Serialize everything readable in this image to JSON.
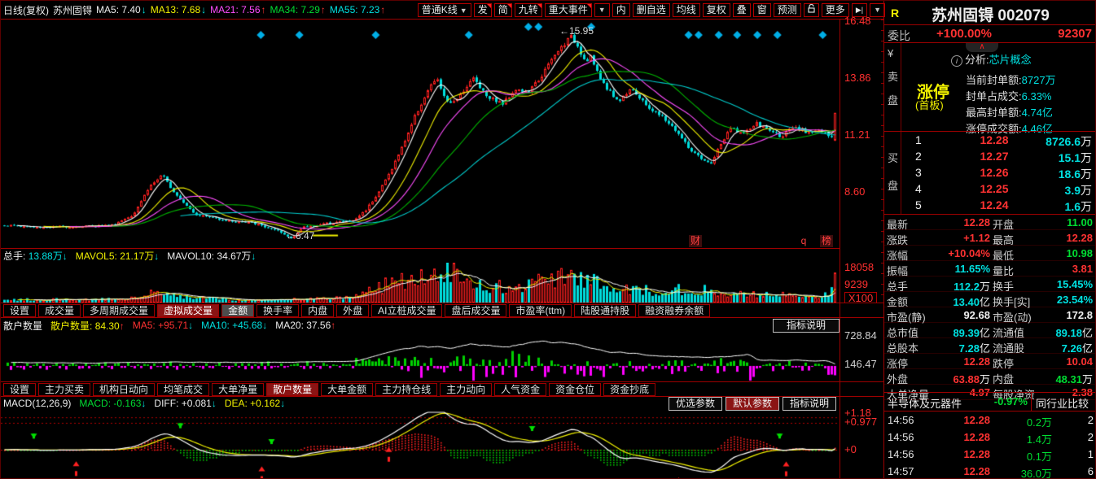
{
  "colors": {
    "red": "#ff3232",
    "green": "#00dc32",
    "cyan": "#00e0e0",
    "yellow": "#f0f000",
    "magenta": "#ff4dff",
    "white": "#eeeeee",
    "border": "#9e0000",
    "selected_tab_bg": "#8b1414",
    "down_candle": "#00dddd",
    "up_candle": "#ff2020"
  },
  "topbar": {
    "period": "日线(复权)",
    "stock": "苏州固锝",
    "ma": [
      {
        "label": "MA5:",
        "value": "7.40",
        "color": "white",
        "arrow": "↓",
        "ac": "cyan"
      },
      {
        "label": "MA13:",
        "value": "7.68",
        "color": "yellow",
        "arrow": "↓",
        "ac": "cyan"
      },
      {
        "label": "MA21:",
        "value": "7.56",
        "color": "magenta",
        "arrow": "↑",
        "ac": "red"
      },
      {
        "label": "MA34:",
        "value": "7.29",
        "color": "green",
        "arrow": "↑",
        "ac": "red"
      },
      {
        "label": "MA55:",
        "value": "7.23",
        "color": "cyan",
        "arrow": "↑",
        "ac": "red"
      }
    ],
    "buttons": [
      {
        "label": "普通K线",
        "caret": "▼"
      },
      {
        "label": "发"
      },
      {
        "label": "简"
      },
      {
        "label": "九转"
      },
      {
        "label": "重大事件"
      },
      {
        "label": "▼"
      },
      {
        "label": "内"
      },
      {
        "label": "删自选"
      },
      {
        "label": "均线"
      },
      {
        "label": "复权"
      },
      {
        "label": "叠"
      },
      {
        "label": "窗"
      },
      {
        "label": "预测"
      },
      {
        "label": "更多"
      },
      {
        "label": "▶|"
      },
      {
        "label": "▼"
      }
    ]
  },
  "main_chart": {
    "y_axis": [
      "16.48",
      "13.86",
      "11.21",
      "8.60"
    ],
    "high_annotation": "←15.95",
    "low_annotation": "←6.47",
    "watermarks": [
      "财",
      "q",
      "榜"
    ]
  },
  "vol_header": {
    "items": [
      {
        "label": "总手:",
        "value": "13.88万",
        "lc": "white",
        "vc": "cyan",
        "arrow": "↓",
        "ac": "cyan"
      },
      {
        "label": "MAVOL5:",
        "value": "21.17万",
        "lc": "yellow",
        "vc": "yellow",
        "arrow": "↓",
        "ac": "cyan"
      },
      {
        "label": "MAVOL10:",
        "value": "34.67万",
        "lc": "white",
        "vc": "white",
        "arrow": "↓",
        "ac": "cyan"
      }
    ],
    "y_axis": [
      "18058",
      "9239",
      "X100"
    ]
  },
  "tabs1": {
    "items": [
      {
        "label": "设置"
      },
      {
        "label": "成交量"
      },
      {
        "label": "多周期成交量"
      },
      {
        "label": "虚拟成交量"
      },
      {
        "label": "金额"
      },
      {
        "label": "换手率"
      },
      {
        "label": "内盘"
      },
      {
        "label": "外盘"
      },
      {
        "label": "AI立桩成交量"
      },
      {
        "label": "盘后成交量"
      },
      {
        "label": "市盈率(ttm)"
      },
      {
        "label": "陆股通持股"
      },
      {
        "label": "融资融券余额"
      }
    ]
  },
  "pane2_header": {
    "title": "散户数量",
    "items": [
      {
        "label": "散户数量:",
        "value": "84.30",
        "color": "yellow",
        "arrow": "↑",
        "ac": "red"
      },
      {
        "label": "MA5:",
        "value": "+95.71",
        "color": "red",
        "arrow": "↓",
        "ac": "cyan"
      },
      {
        "label": "MA10:",
        "value": "+45.68",
        "color": "cyan",
        "arrow": "↓",
        "ac": "cyan"
      },
      {
        "label": "MA20:",
        "value": "37.56",
        "color": "white",
        "arrow": "↑",
        "ac": "red"
      }
    ],
    "button": "指标说明",
    "y_axis": [
      "728.84",
      "146.47"
    ]
  },
  "tabs2": {
    "items": [
      {
        "label": "设置"
      },
      {
        "label": "主力买卖"
      },
      {
        "label": "机构日动向"
      },
      {
        "label": "均笔成交"
      },
      {
        "label": "大单净量"
      },
      {
        "label": "散户数量"
      },
      {
        "label": "大单金额"
      },
      {
        "label": "主力持仓线"
      },
      {
        "label": "主力动向"
      },
      {
        "label": "人气资金"
      },
      {
        "label": "资金仓位"
      },
      {
        "label": "资金抄底"
      }
    ]
  },
  "macd_header": {
    "title": "MACD(12,26,9)",
    "items": [
      {
        "label": "MACD:",
        "value": "-0.163",
        "color": "green",
        "arrow": "↓",
        "ac": "cyan"
      },
      {
        "label": "DIFF:",
        "value": "+0.081",
        "color": "white",
        "arrow": "↓",
        "ac": "cyan"
      },
      {
        "label": "DEA:",
        "value": "+0.162",
        "color": "yellow",
        "arrow": "↓",
        "ac": "cyan"
      }
    ],
    "buttons": [
      "优选参数",
      "默认参数",
      "指标说明"
    ],
    "y_axis": [
      "+1.18",
      "+0.977",
      "+0"
    ]
  },
  "right_panel": {
    "r_badge": "R",
    "title": "苏州固锝 002079",
    "weibi_label": "委比",
    "weibi_value": "+100.00%",
    "weicha_value": "92307",
    "sell_chars": [
      "¥",
      "卖",
      "盘"
    ],
    "buy_chars": [
      "买",
      "盘"
    ],
    "collapse_icon": "∧",
    "limit_up": "涨停",
    "limit_up_sub": "(首板)",
    "analysis": {
      "label": "分析:",
      "value": "芯片概念",
      "rows": [
        {
          "label": "当前封单额:",
          "value": "8727万"
        },
        {
          "label": "封单占成交:",
          "value": "6.33%"
        },
        {
          "label": "最高封单额:",
          "value": "4.74亿"
        },
        {
          "label": "涨停成交额:",
          "value": "4.46亿"
        }
      ]
    },
    "buy_rows": [
      {
        "level": "1",
        "price": "12.28",
        "vol": "8726.6",
        "unit": "万"
      },
      {
        "level": "2",
        "price": "12.27",
        "vol": "15.1",
        "unit": "万"
      },
      {
        "level": "3",
        "price": "12.26",
        "vol": "18.6",
        "unit": "万"
      },
      {
        "level": "4",
        "price": "12.25",
        "vol": "3.9",
        "unit": "万"
      },
      {
        "level": "5",
        "price": "12.24",
        "vol": "1.6",
        "unit": "万"
      }
    ],
    "stats": [
      {
        "l1": "最新",
        "v1": "12.28",
        "u1": "",
        "c1": "red",
        "l2": "开盘",
        "v2": "11.00",
        "u2": "",
        "c2": "green"
      },
      {
        "l1": "涨跌",
        "v1": "+1.12",
        "u1": "",
        "c1": "red",
        "l2": "最高",
        "v2": "12.28",
        "u2": "",
        "c2": "red"
      },
      {
        "l1": "涨幅",
        "v1": "+10.04%",
        "u1": "",
        "c1": "red",
        "l2": "最低",
        "v2": "10.98",
        "u2": "",
        "c2": "green"
      },
      {
        "l1": "振幅",
        "v1": "11.65%",
        "u1": "",
        "c1": "cyan",
        "l2": "量比",
        "v2": "3.81",
        "u2": "",
        "c2": "red"
      },
      {
        "l1": "总手",
        "v1": "112.2",
        "u1": "万",
        "c1": "cyan",
        "l2": "换手",
        "v2": "15.45%",
        "u2": "",
        "c2": "cyan"
      },
      {
        "l1": "金额",
        "v1": "13.40",
        "u1": "亿",
        "c1": "cyan",
        "l2": "换手[实]",
        "v2": "23.54%",
        "u2": "",
        "c2": "cyan"
      },
      {
        "l1": "市盈(静)",
        "v1": "92.68",
        "u1": "",
        "c1": "white",
        "l2": "市盈(动)",
        "v2": "172.8",
        "u2": "",
        "c2": "white"
      },
      {
        "l1": "总市值",
        "v1": "89.39",
        "u1": "亿",
        "c1": "cyan",
        "l2": "流通值",
        "v2": "89.18",
        "u2": "亿",
        "c2": "cyan"
      },
      {
        "l1": "总股本",
        "v1": "7.28",
        "u1": "亿",
        "c1": "cyan",
        "l2": "流通股",
        "v2": "7.26",
        "u2": "亿",
        "c2": "cyan"
      },
      {
        "l1": "涨停",
        "v1": "12.28",
        "u1": "",
        "c1": "red",
        "l2": "跌停",
        "v2": "10.04",
        "u2": "",
        "c2": "red"
      },
      {
        "l1": "外盘",
        "v1": "63.88",
        "u1": "万",
        "c1": "red",
        "l2": "内盘",
        "v2": "48.31",
        "u2": "万",
        "c2": "green"
      },
      {
        "l1": "大单净量",
        "v1": "4.97",
        "u1": "",
        "c1": "red",
        "l2": "每股净资",
        "v2": "2.38",
        "u2": "",
        "c2": "red"
      }
    ],
    "industry": {
      "name": "半导体及元器件",
      "change": "-0.97%",
      "compare": "同行业比较"
    },
    "ticks": [
      {
        "time": "14:56",
        "price": "12.28",
        "vol": "0.2万",
        "count": "2"
      },
      {
        "time": "14:56",
        "price": "12.28",
        "vol": "1.4万",
        "count": "2"
      },
      {
        "time": "14:56",
        "price": "12.28",
        "vol": "0.1万",
        "count": "1"
      },
      {
        "time": "14:57",
        "price": "12.28",
        "vol": "36.0万",
        "count": "6"
      }
    ]
  },
  "chart_data": {
    "type": "candlestick",
    "n": 256,
    "price_range": [
      6.04,
      16.59
    ],
    "y_axis_values": [
      16.48,
      13.86,
      11.21,
      8.6
    ],
    "high_point": {
      "frac": 0.682,
      "price": 15.95
    },
    "low_point": {
      "frac": 0.345,
      "price": 6.47
    },
    "last_candle": {
      "open": 11.0,
      "close": 12.28,
      "high": 12.28,
      "low": 10.98,
      "prev_close": 11.16
    },
    "ma_periods": [
      5,
      13,
      21,
      34,
      55
    ],
    "ma_colors": [
      "#ffffff",
      "#f0f000",
      "#ff4dff",
      "#00b400",
      "#00cccc"
    ],
    "price_anchors": [
      [
        0,
        7.1
      ],
      [
        0.04,
        7.0
      ],
      [
        0.09,
        7.05
      ],
      [
        0.13,
        7.1
      ],
      [
        0.155,
        7.6
      ],
      [
        0.175,
        8.9
      ],
      [
        0.19,
        9.4
      ],
      [
        0.205,
        8.6
      ],
      [
        0.23,
        7.6
      ],
      [
        0.27,
        7.3
      ],
      [
        0.3,
        7.2
      ],
      [
        0.33,
        6.8
      ],
      [
        0.345,
        6.5
      ],
      [
        0.36,
        7.0
      ],
      [
        0.4,
        7.25
      ],
      [
        0.42,
        7.3
      ],
      [
        0.435,
        7.8
      ],
      [
        0.45,
        8.6
      ],
      [
        0.465,
        9.6
      ],
      [
        0.48,
        10.8
      ],
      [
        0.495,
        12.2
      ],
      [
        0.51,
        13.3
      ],
      [
        0.52,
        13.9
      ],
      [
        0.535,
        12.6
      ],
      [
        0.55,
        13.2
      ],
      [
        0.565,
        13.9
      ],
      [
        0.58,
        13.1
      ],
      [
        0.6,
        12.7
      ],
      [
        0.615,
        13.4
      ],
      [
        0.63,
        13.2
      ],
      [
        0.645,
        13.9
      ],
      [
        0.66,
        14.8
      ],
      [
        0.67,
        15.3
      ],
      [
        0.682,
        15.8
      ],
      [
        0.69,
        15.4
      ],
      [
        0.7,
        14.6
      ],
      [
        0.705,
        15.0
      ],
      [
        0.715,
        14.0
      ],
      [
        0.73,
        13.2
      ],
      [
        0.74,
        12.8
      ],
      [
        0.755,
        13.5
      ],
      [
        0.765,
        12.9
      ],
      [
        0.78,
        12.4
      ],
      [
        0.795,
        12.0
      ],
      [
        0.81,
        11.4
      ],
      [
        0.825,
        10.6
      ],
      [
        0.84,
        10.1
      ],
      [
        0.85,
        9.9
      ],
      [
        0.862,
        10.8
      ],
      [
        0.875,
        11.6
      ],
      [
        0.89,
        11.3
      ],
      [
        0.905,
        11.8
      ],
      [
        0.92,
        11.5
      ],
      [
        0.935,
        11.2
      ],
      [
        0.95,
        11.6
      ],
      [
        0.965,
        11.4
      ],
      [
        0.98,
        11.5
      ],
      [
        0.995,
        11.16
      ],
      [
        1,
        12.28
      ]
    ],
    "volume_anchors": [
      [
        0,
        1500
      ],
      [
        0.15,
        1800
      ],
      [
        0.18,
        5200
      ],
      [
        0.21,
        3000
      ],
      [
        0.3,
        1200
      ],
      [
        0.42,
        2500
      ],
      [
        0.45,
        8000
      ],
      [
        0.5,
        14000
      ],
      [
        0.53,
        17500
      ],
      [
        0.56,
        9000
      ],
      [
        0.62,
        8000
      ],
      [
        0.66,
        13000
      ],
      [
        0.69,
        12000
      ],
      [
        0.73,
        9000
      ],
      [
        0.78,
        6000
      ],
      [
        0.83,
        7000
      ],
      [
        0.87,
        5000
      ],
      [
        0.92,
        4000
      ],
      [
        0.97,
        3500
      ],
      [
        0.995,
        4000
      ],
      [
        1,
        15500
      ]
    ],
    "vol_max": 20600,
    "retail_anchors": [
      [
        0,
        150
      ],
      [
        0.1,
        140
      ],
      [
        0.2,
        160
      ],
      [
        0.3,
        150
      ],
      [
        0.42,
        180
      ],
      [
        0.47,
        420
      ],
      [
        0.5,
        520
      ],
      [
        0.53,
        480
      ],
      [
        0.56,
        560
      ],
      [
        0.6,
        500
      ],
      [
        0.64,
        620
      ],
      [
        0.68,
        560
      ],
      [
        0.72,
        400
      ],
      [
        0.78,
        300
      ],
      [
        0.84,
        260
      ],
      [
        0.88,
        300
      ],
      [
        0.895,
        360
      ],
      [
        0.9,
        200
      ],
      [
        0.95,
        200
      ],
      [
        0.99,
        180
      ],
      [
        1,
        84
      ]
    ],
    "macd_scale": 33.8,
    "macd_guides": [
      1.18,
      0.977,
      0
    ],
    "event_diamonds": {
      "rows": [
        {
          "y": 32,
          "fracs": [
            0.629,
            0.641,
            0.704
          ]
        },
        {
          "y": 42,
          "fracs": [
            0.31,
            0.356,
            0.447,
            0.558,
            0.82,
            0.832,
            0.856,
            0.878,
            0.902,
            0.926,
            0.98
          ]
        }
      ]
    },
    "macd_arrows": {
      "green_down": [
        0.034,
        0.212,
        0.322,
        0.54,
        0.637,
        0.932
      ],
      "red_up": [
        0.085,
        0.308,
        0.462,
        0.813,
        0.942
      ]
    },
    "yellow_mark": {
      "frac0": 0.372,
      "frac1": 0.402,
      "price": 6.62
    }
  }
}
